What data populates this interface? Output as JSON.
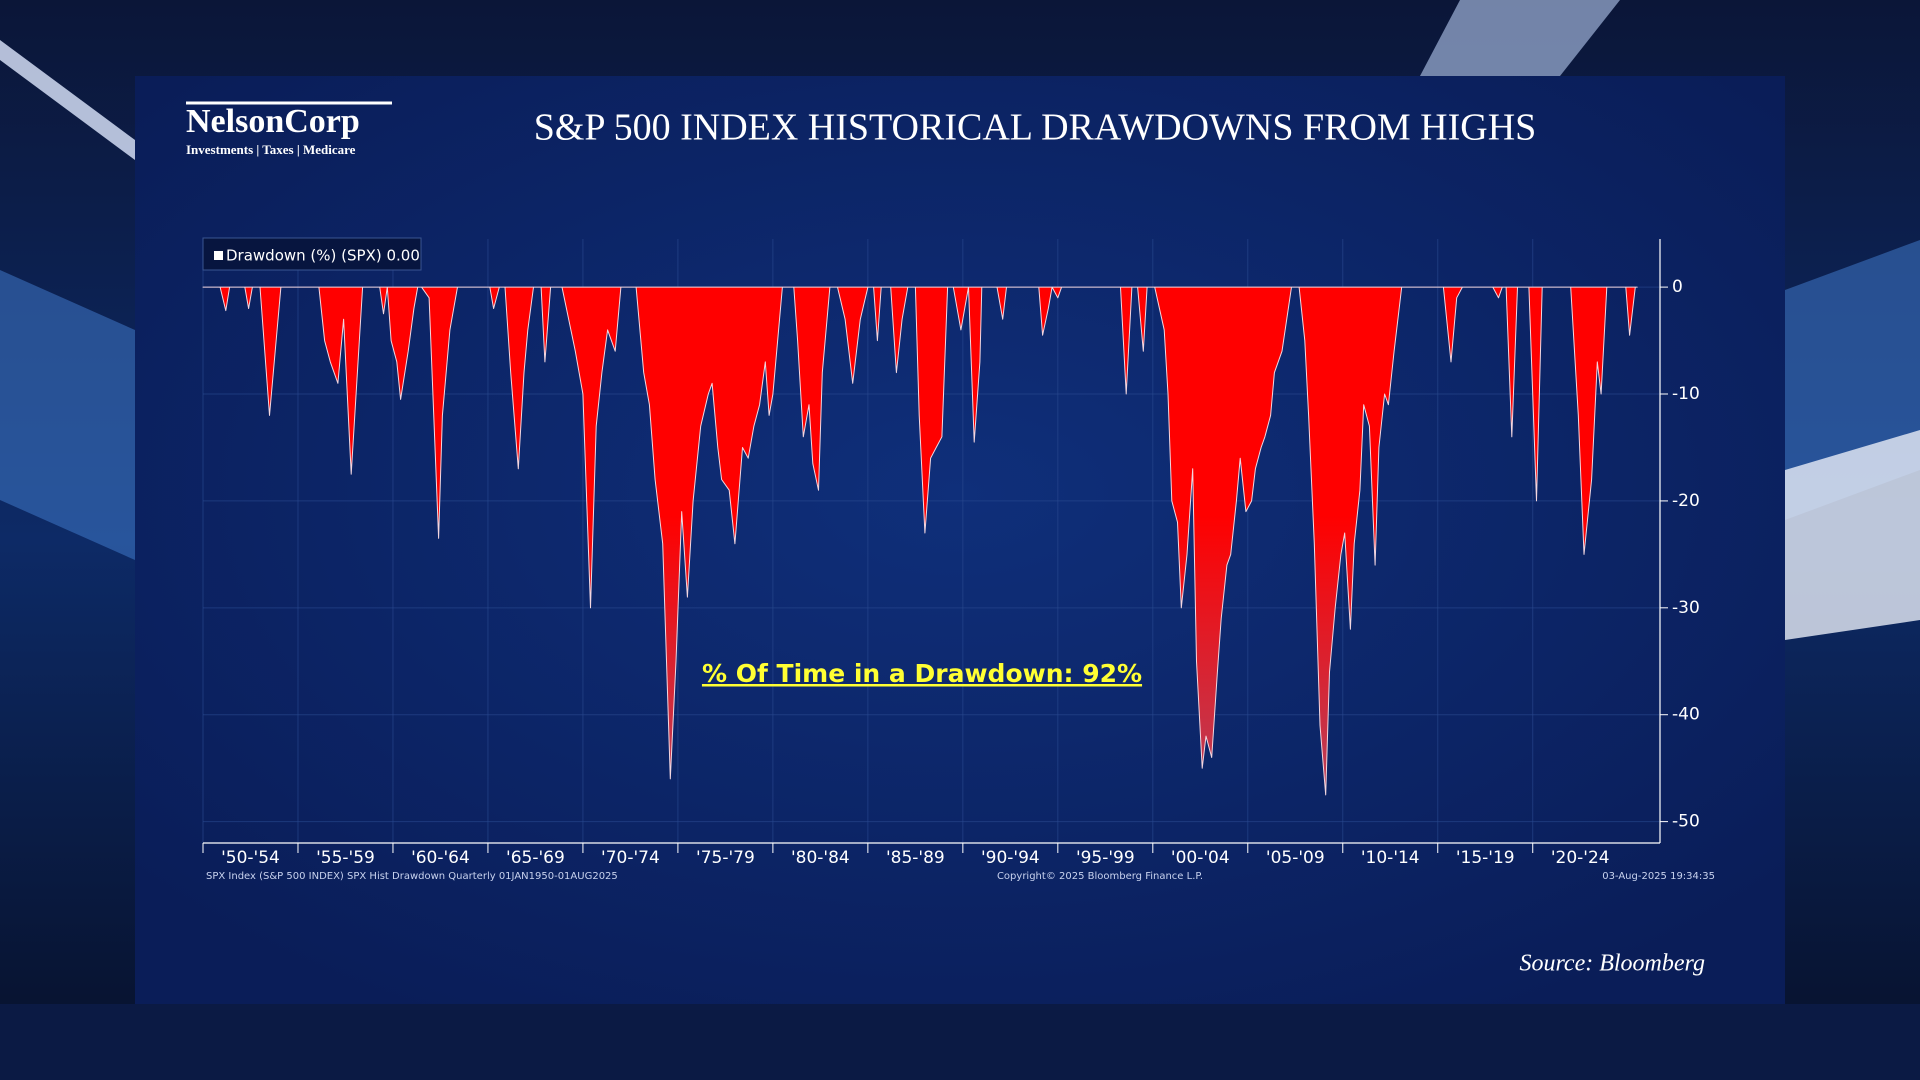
{
  "header": {
    "logo": "NelsonCorp",
    "logo_tagline": "Investments | Taxes | Medicare"
  },
  "chart_data": {
    "type": "area",
    "title": "S&P 500 INDEX HISTORICAL DRAWDOWNS FROM HIGHS",
    "annotation": "% Of Time in a Drawdown: 92%",
    "footnote_left": "SPX Index (S&P 500 INDEX) SPX Hist Drawdown  Quarterly 01JAN1950-01AUG2025",
    "footnote_center": "Copyright© 2025 Bloomberg Finance L.P.",
    "footnote_right": "03-Aug-2025 19:34:35",
    "source": "Source: Bloomberg",
    "grid": true,
    "xlim": [
      1950,
      2026.7
    ],
    "ylim": [
      -52,
      4.5
    ],
    "yticks": [
      0,
      -10,
      -20,
      -30,
      -40,
      -50
    ],
    "xticks": [
      {
        "value": 1950,
        "label": "'50-'54"
      },
      {
        "value": 1955,
        "label": "'55-'59"
      },
      {
        "value": 1960,
        "label": "'60-'64"
      },
      {
        "value": 1965,
        "label": "'65-'69"
      },
      {
        "value": 1970,
        "label": "'70-'74"
      },
      {
        "value": 1975,
        "label": "'75-'79"
      },
      {
        "value": 1980,
        "label": "'80-'84"
      },
      {
        "value": 1985,
        "label": "'85-'89"
      },
      {
        "value": 1990,
        "label": "'90-'94"
      },
      {
        "value": 1995,
        "label": "'95-'99"
      },
      {
        "value": 2000,
        "label": "'00-'04"
      },
      {
        "value": 2005,
        "label": "'05-'09"
      },
      {
        "value": 2010,
        "label": "'10-'14"
      },
      {
        "value": 2015,
        "label": "'15-'19"
      },
      {
        "value": 2020,
        "label": "'20-'24"
      }
    ],
    "x": [
      1950.0,
      1950.9,
      1951.2,
      1951.4,
      1952.2,
      1952.4,
      1952.6,
      1953.0,
      1953.5,
      1954.1,
      1956.1,
      1956.4,
      1956.7,
      1957.1,
      1957.4,
      1957.8,
      1958.4,
      1959.3,
      1959.5,
      1959.7,
      1959.9,
      1960.2,
      1960.4,
      1960.8,
      1961.1,
      1961.3,
      1961.5,
      1961.9,
      1962.4,
      1962.6,
      1963.0,
      1963.4,
      1965.1,
      1965.3,
      1965.6,
      1965.9,
      1966.2,
      1966.6,
      1966.9,
      1967.1,
      1967.4,
      1967.8,
      1968.0,
      1968.3,
      1968.9,
      1969.6,
      1970.0,
      1970.4,
      1970.7,
      1971.0,
      1971.3,
      1971.7,
      1972.0,
      1972.8,
      1973.2,
      1973.5,
      1973.8,
      1974.2,
      1974.6,
      1974.9,
      1975.2,
      1975.5,
      1975.8,
      1976.2,
      1976.6,
      1976.8,
      1977.1,
      1977.3,
      1977.7,
      1978.0,
      1978.4,
      1978.7,
      1979.0,
      1979.3,
      1979.6,
      1979.8,
      1980.0,
      1980.5,
      1981.1,
      1981.3,
      1981.6,
      1981.9,
      1982.1,
      1982.4,
      1982.6,
      1983.0,
      1983.4,
      1983.8,
      1984.2,
      1984.6,
      1985.0,
      1985.3,
      1985.5,
      1985.7,
      1986.2,
      1986.5,
      1986.8,
      1987.1,
      1987.5,
      1987.7,
      1988.0,
      1988.3,
      1988.6,
      1988.9,
      1989.2,
      1989.5,
      1989.9,
      1990.1,
      1990.3,
      1990.6,
      1990.9,
      1991.0,
      1991.8,
      1992.1,
      1992.3,
      1994.0,
      1994.2,
      1994.5,
      1994.7,
      1995.0,
      1995.2,
      1998.3,
      1998.6,
      1998.9,
      1999.2,
      1999.5,
      1999.7,
      2000.1,
      2000.6,
      2000.8,
      2001.0,
      2001.3,
      2001.5,
      2001.8,
      2002.1,
      2002.3,
      2002.6,
      2002.8,
      2003.1,
      2003.4,
      2003.6,
      2003.9,
      2004.1,
      2004.4,
      2004.6,
      2004.9,
      2005.2,
      2005.4,
      2005.7,
      2005.9,
      2006.2,
      2006.4,
      2006.8,
      2007.3,
      2007.7,
      2008.0,
      2008.2,
      2008.5,
      2008.8,
      2009.1,
      2009.3,
      2009.6,
      2009.9,
      2010.1,
      2010.4,
      2010.6,
      2010.9,
      2011.1,
      2011.4,
      2011.7,
      2011.9,
      2012.2,
      2012.4,
      2012.7,
      2013.1,
      2015.3,
      2015.7,
      2016.0,
      2016.3,
      2017.9,
      2018.2,
      2018.4,
      2018.6,
      2018.9,
      2019.2,
      2019.8,
      2020.2,
      2020.5,
      2022.0,
      2022.4,
      2022.7,
      2023.1,
      2023.4,
      2023.6,
      2023.9,
      2024.9,
      2025.1,
      2025.4,
      2025.5
    ],
    "series": [
      {
        "name": "Drawdown (%) (SPX) 0.00",
        "color": "#ff0000",
        "values": [
          0,
          0,
          -2.2,
          0,
          0,
          -2,
          0,
          0,
          -12,
          0,
          0,
          -5,
          -7,
          -9,
          -3,
          -17.5,
          0,
          0,
          -2.5,
          0,
          -5,
          -7,
          -10.5,
          -6,
          -2,
          0,
          0,
          -1,
          -23.5,
          -12,
          -4,
          0,
          0,
          -2,
          0,
          0,
          -8,
          -17,
          -8,
          -4,
          0,
          0,
          -7,
          0,
          0,
          -6,
          -10,
          -30,
          -13,
          -8,
          -4,
          -6,
          0,
          0,
          -8,
          -11,
          -18,
          -24,
          -46,
          -35,
          -21,
          -29,
          -20,
          -13,
          -10,
          -9,
          -15,
          -18,
          -19,
          -24,
          -15,
          -16,
          -13,
          -11,
          -7,
          -12,
          -10,
          0,
          0,
          -5,
          -14,
          -11,
          -16.5,
          -19,
          -8,
          0,
          0,
          -3,
          -9,
          -3,
          0,
          0,
          -5,
          0,
          0,
          -8,
          -3,
          0,
          0,
          -12,
          -23,
          -16,
          -15,
          -14,
          0,
          0,
          -4,
          -2,
          0,
          -14.5,
          -7,
          0,
          0,
          -3,
          0,
          0,
          -4.5,
          -2,
          0,
          -1,
          0,
          0,
          -10,
          0,
          0,
          -6,
          0,
          0,
          -4,
          -10,
          -20,
          -22,
          -30,
          -25,
          -17,
          -35,
          -45,
          -42,
          -44,
          -36,
          -31,
          -26,
          -25,
          -20,
          -16,
          -21,
          -20,
          -17,
          -15,
          -14,
          -12,
          -8,
          -6,
          0,
          0,
          -5,
          -12,
          -24,
          -41,
          -47.5,
          -36,
          -30,
          -25,
          -23,
          -32,
          -24,
          -19,
          -11,
          -13,
          -26,
          -15,
          -10,
          -11,
          -6,
          0,
          0,
          -7,
          -1,
          0,
          0,
          -1,
          0,
          0,
          -14,
          0,
          0,
          -20,
          0,
          0,
          -12,
          -25,
          -18,
          -7,
          -10,
          0,
          0,
          -4.5,
          0,
          0
        ]
      }
    ]
  }
}
